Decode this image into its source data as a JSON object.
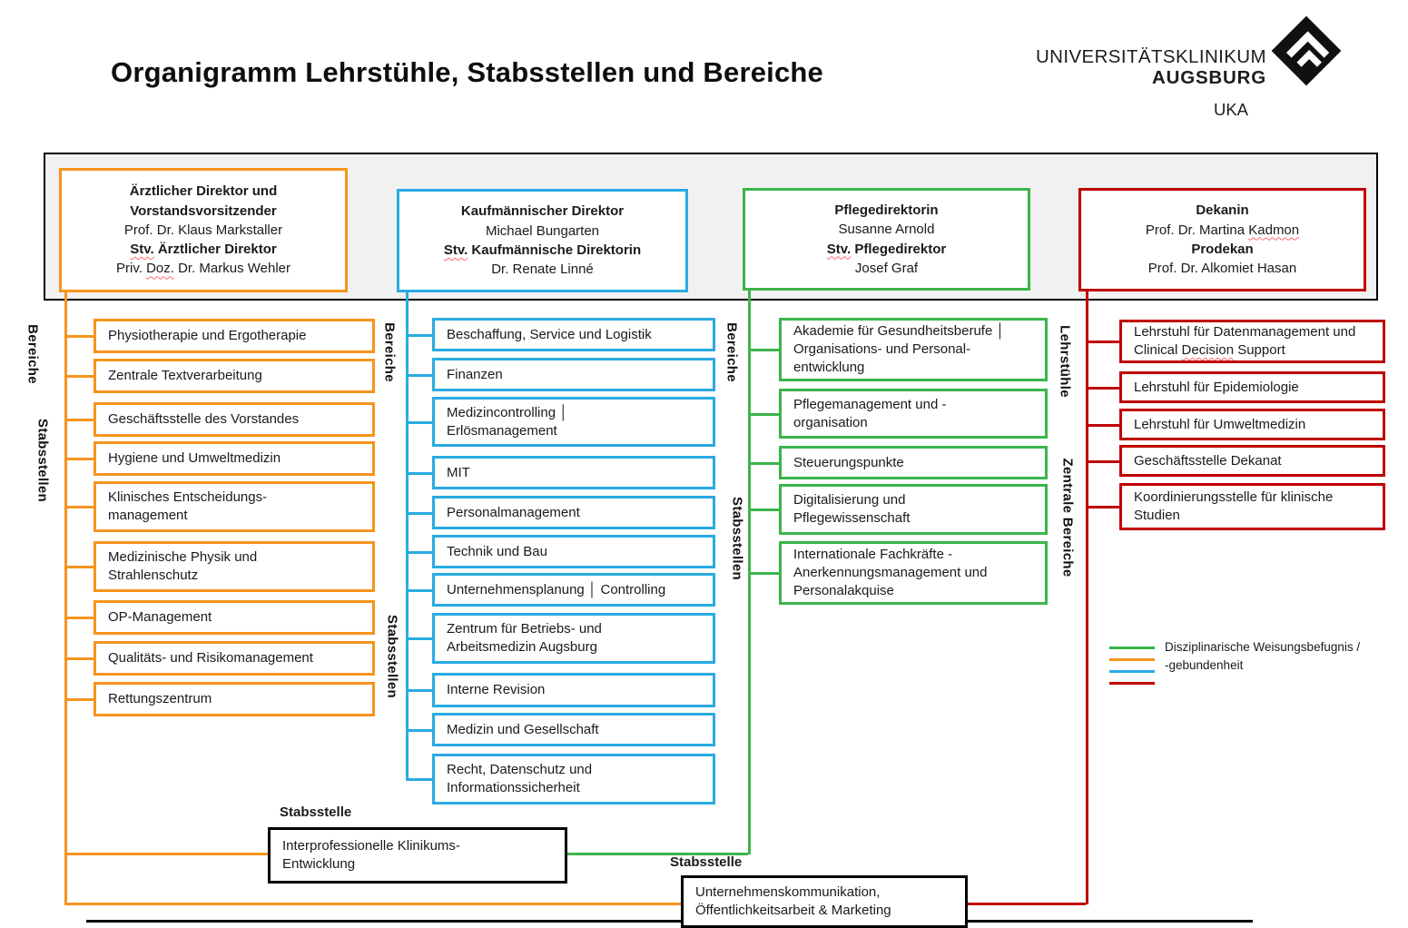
{
  "title": "Organigramm Lehrstühle, Stabsstellen und Bereiche",
  "logo": {
    "line1": "UNIVERSITÄTSKLINIKUM",
    "line2": "AUGSBURG",
    "acronym": "UKA"
  },
  "colors": {
    "orange": "#F7941D",
    "blue": "#29ABE2",
    "green": "#3BB54A",
    "red": "#C00000",
    "band_bg": "#f1f1f1",
    "black": "#000000"
  },
  "leaders": [
    {
      "color": "orange",
      "lines": [
        {
          "bold": true,
          "segs": [
            {
              "t": "Ärztlicher Direktor und"
            }
          ]
        },
        {
          "bold": true,
          "segs": [
            {
              "t": "Vorstandsvorsitzender"
            }
          ]
        },
        {
          "bold": false,
          "segs": [
            {
              "t": "Prof. Dr. Klaus Markstaller"
            }
          ]
        },
        {
          "bold": true,
          "segs": [
            {
              "t": "Stv.",
              "sq": true
            },
            {
              "t": " Ärztlicher Direktor"
            }
          ]
        },
        {
          "bold": false,
          "segs": [
            {
              "t": "Priv. "
            },
            {
              "t": "Doz.",
              "sq": true
            },
            {
              "t": " Dr. Markus Wehler"
            }
          ]
        }
      ]
    },
    {
      "color": "blue",
      "lines": [
        {
          "bold": true,
          "segs": [
            {
              "t": "Kaufmännischer Direktor"
            }
          ]
        },
        {
          "bold": false,
          "segs": [
            {
              "t": "Michael Bungarten"
            }
          ]
        },
        {
          "bold": true,
          "segs": [
            {
              "t": "Stv.",
              "sq": true
            },
            {
              "t": " Kaufmännische Direktorin"
            }
          ]
        },
        {
          "bold": false,
          "segs": [
            {
              "t": "Dr. Renate Linné"
            }
          ]
        }
      ]
    },
    {
      "color": "green",
      "lines": [
        {
          "bold": true,
          "segs": [
            {
              "t": "Pflegedirektorin"
            }
          ]
        },
        {
          "bold": false,
          "segs": [
            {
              "t": "Susanne Arnold"
            }
          ]
        },
        {
          "bold": true,
          "segs": [
            {
              "t": "Stv.",
              "sq": true
            },
            {
              "t": " Pflegedirektor"
            }
          ]
        },
        {
          "bold": false,
          "segs": [
            {
              "t": "Josef Graf"
            }
          ]
        }
      ]
    },
    {
      "color": "red",
      "lines": [
        {
          "bold": true,
          "segs": [
            {
              "t": "Dekanin"
            }
          ]
        },
        {
          "bold": false,
          "segs": [
            {
              "t": "Prof. Dr. Martina "
            },
            {
              "t": "Kadmon",
              "sq": true
            }
          ]
        },
        {
          "bold": true,
          "segs": [
            {
              "t": "Prodekan"
            }
          ]
        },
        {
          "bold": false,
          "segs": [
            {
              "t": "Prof. Dr. Alkomiet Hasan"
            }
          ]
        }
      ]
    }
  ],
  "columns": [
    {
      "color": "orange",
      "boxes": [
        [
          "Physiotherapie und Ergotherapie"
        ],
        [
          "Zentrale Textverarbeitung"
        ],
        [
          "Geschäftsstelle des Vorstandes"
        ],
        [
          "Hygiene und Umweltmedizin"
        ],
        [
          "Klinisches Entscheidungs-",
          "management"
        ],
        [
          "Medizinische Physik und",
          "Strahlenschutz"
        ],
        [
          "OP-Management"
        ],
        [
          "Qualitäts- und Risikomanagement"
        ],
        [
          "Rettungszentrum"
        ]
      ]
    },
    {
      "color": "blue",
      "boxes": [
        [
          "Beschaffung, Service und Logistik"
        ],
        [
          "Finanzen"
        ],
        [
          "Medizincontrolling │",
          "Erlösmanagement"
        ],
        [
          "MIT"
        ],
        [
          "Personalmanagement"
        ],
        [
          "Technik und Bau"
        ],
        [
          "Unternehmensplanung │ Controlling"
        ],
        [
          "Zentrum für Betriebs- und",
          "Arbeitsmedizin Augsburg"
        ],
        [
          "Interne Revision"
        ],
        [
          "Medizin und Gesellschaft"
        ],
        [
          "Recht, Datenschutz und",
          "Informationssicherheit"
        ]
      ]
    },
    {
      "color": "green",
      "boxes": [
        [
          "Akademie für Gesundheitsberufe │",
          "Organisations- und Personal-",
          "entwicklung"
        ],
        [
          "Pflegemanagement und -",
          "organisation"
        ],
        [
          "Steuerungspunkte"
        ],
        [
          "Digitalisierung und",
          "Pflegewissenschaft"
        ],
        [
          "Internationale Fachkräfte -",
          "Anerkennungsmanagement und",
          "Personalakquise"
        ]
      ]
    },
    {
      "color": "red",
      "boxes": [
        [
          "Lehrstuhl für Datenmanagement und",
          [
            {
              "t": "Clinical "
            },
            {
              "t": "Decision",
              "sq": true
            },
            {
              "t": " Support"
            }
          ]
        ],
        [
          "Lehrstuhl für Epidemiologie"
        ],
        [
          "Lehrstuhl für Umweltmedizin"
        ],
        [
          "Geschäftsstelle Dekanat"
        ],
        [
          "Koordinierungsstelle für klinische",
          "Studien"
        ]
      ]
    }
  ],
  "vertical_labels": [
    "Bereiche",
    "Stabsstellen",
    "Bereiche",
    "Stabsstellen",
    "Bereiche",
    "Stabsstellen",
    "Lehrstühle",
    "Zentrale Bereiche"
  ],
  "legend": {
    "order": [
      "green",
      "orange",
      "blue",
      "red"
    ],
    "line1": "Disziplinarische Weisungsbefugnis /",
    "line2": "-gebundenheit"
  },
  "bottom": [
    {
      "label": "Stabsstelle",
      "lines": [
        "Interprofessionelle Klinikums-",
        "Entwicklung"
      ]
    },
    {
      "label": "Stabsstelle",
      "lines": [
        "Unternehmenskommunikation,",
        "Öffentlichkeitsarbeit & Marketing"
      ]
    }
  ]
}
